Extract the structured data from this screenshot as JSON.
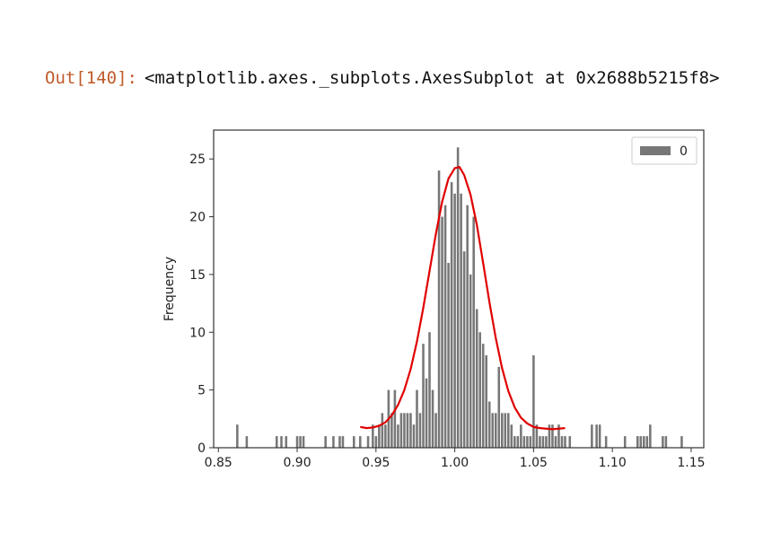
{
  "cell": {
    "prompt": "Out[140]:",
    "repr": "<matplotlib.axes._subplots.AxesSubplot at 0x2688b5215f8>"
  },
  "colors": {
    "bars": "#777777",
    "fit_line": "#e00000",
    "axes": "#333333",
    "legend_border": "#cccccc"
  },
  "chart_data": {
    "type": "bar",
    "ylabel": "Frequency",
    "xlim": [
      0.847,
      1.158
    ],
    "ylim": [
      0,
      27.5
    ],
    "xticks": [
      "0.85",
      "0.90",
      "0.95",
      "1.00",
      "1.05",
      "1.10",
      "1.15"
    ],
    "yticks": [
      "0",
      "5",
      "10",
      "15",
      "20",
      "25"
    ],
    "legend": {
      "position": "top-right",
      "entries": [
        "0"
      ]
    },
    "series": [
      {
        "name": "0",
        "kind": "histogram",
        "bin_width": 0.00145,
        "x": [
          0.862,
          0.868,
          0.887,
          0.89,
          0.893,
          0.9,
          0.902,
          0.904,
          0.918,
          0.923,
          0.927,
          0.929,
          0.936,
          0.94,
          0.945,
          0.948,
          0.95,
          0.952,
          0.954,
          0.956,
          0.958,
          0.96,
          0.962,
          0.964,
          0.966,
          0.968,
          0.97,
          0.972,
          0.974,
          0.976,
          0.978,
          0.98,
          0.982,
          0.984,
          0.986,
          0.988,
          0.99,
          0.992,
          0.994,
          0.996,
          0.998,
          1.0,
          1.002,
          1.004,
          1.006,
          1.008,
          1.01,
          1.012,
          1.014,
          1.016,
          1.018,
          1.02,
          1.022,
          1.024,
          1.026,
          1.028,
          1.03,
          1.032,
          1.034,
          1.036,
          1.038,
          1.04,
          1.042,
          1.044,
          1.046,
          1.048,
          1.05,
          1.052,
          1.054,
          1.056,
          1.058,
          1.06,
          1.062,
          1.064,
          1.066,
          1.068,
          1.07,
          1.073,
          1.087,
          1.09,
          1.092,
          1.096,
          1.108,
          1.116,
          1.118,
          1.12,
          1.122,
          1.124,
          1.132,
          1.134,
          1.144
        ],
        "values": [
          2,
          1,
          1,
          1,
          1,
          1,
          1,
          1,
          1,
          1,
          1,
          1,
          1,
          1,
          1,
          2,
          1,
          2,
          3,
          2,
          5,
          3,
          5,
          2,
          3,
          3,
          3,
          3,
          2,
          5,
          3,
          9,
          6,
          10,
          5,
          3,
          24,
          20,
          21,
          16,
          23,
          22,
          26,
          22,
          17,
          21,
          15,
          20,
          12,
          10,
          9,
          8,
          4,
          3,
          3,
          7,
          3,
          3,
          3,
          2,
          1,
          1,
          2,
          1,
          1,
          1,
          8,
          2,
          1,
          1,
          1,
          2,
          2,
          1,
          2,
          1,
          1,
          1,
          2,
          2,
          2,
          1,
          1,
          1,
          1,
          1,
          1,
          2,
          1,
          1,
          1
        ]
      },
      {
        "name": "",
        "kind": "line",
        "x": [
          0.94,
          0.944,
          0.948,
          0.952,
          0.956,
          0.96,
          0.964,
          0.968,
          0.972,
          0.976,
          0.98,
          0.984,
          0.988,
          0.992,
          0.996,
          1.0,
          1.003,
          1.006,
          1.01,
          1.014,
          1.018,
          1.022,
          1.026,
          1.03,
          1.034,
          1.038,
          1.042,
          1.046,
          1.05,
          1.054,
          1.058,
          1.062,
          1.066,
          1.07
        ],
        "values": [
          1.8,
          1.7,
          1.75,
          1.9,
          2.2,
          2.8,
          3.7,
          5.0,
          6.8,
          9.2,
          12.1,
          15.3,
          18.5,
          21.3,
          23.3,
          24.2,
          24.3,
          23.6,
          21.9,
          19.3,
          16.0,
          12.6,
          9.5,
          6.9,
          4.9,
          3.5,
          2.6,
          2.1,
          1.8,
          1.7,
          1.65,
          1.6,
          1.65,
          1.7
        ]
      }
    ]
  }
}
